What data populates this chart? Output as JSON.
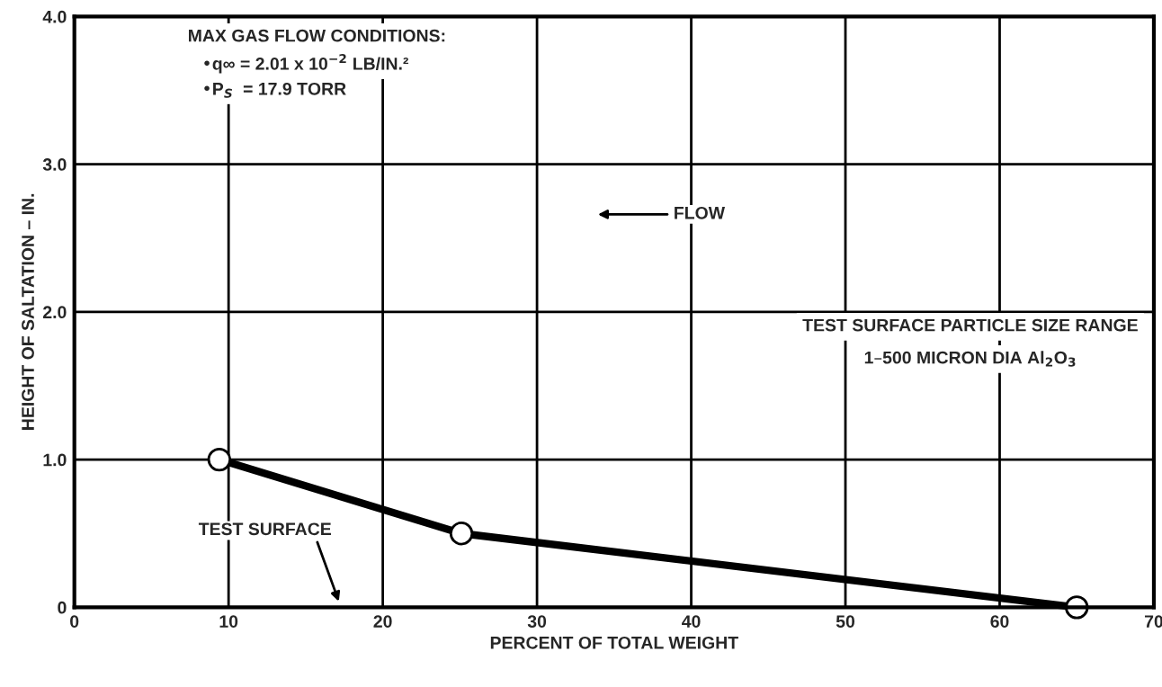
{
  "chart_data": {
    "type": "line",
    "xlabel": "PERCENT OF TOTAL WEIGHT",
    "ylabel": "HEIGHT OF SALTATION – IN.",
    "x": [
      9.4,
      25.1,
      65
    ],
    "series": [
      {
        "color": "#000000",
        "values": [
          1.0,
          0.5,
          0
        ]
      }
    ],
    "marker": "circle",
    "line_style": "solid",
    "xlim": [
      0,
      70
    ],
    "xticks": [
      0,
      10,
      20,
      30,
      40,
      50,
      60,
      70
    ],
    "ylim": [
      0,
      4
    ],
    "yticks": [
      0,
      {
        "value": 1,
        "label": "1.0"
      },
      {
        "value": 2,
        "label": "2.0"
      },
      {
        "value": 3,
        "label": "3.0"
      },
      {
        "value": 4,
        "label": "4.0"
      }
    ],
    "grid": true,
    "annotations": [
      "MAX GAS FLOW CONDITIONS:",
      "•q∞ = 2.01 x 10$^{−2}$ LB/IN.²",
      "•P$_{S}$  = 17.9 TORR",
      "FLOW",
      "TEST SURFACE PARTICLE SIZE RANGE",
      "1–500 MICRON DIA Al$_{2}$O$_{3}$",
      "TEST SURFACE"
    ]
  }
}
